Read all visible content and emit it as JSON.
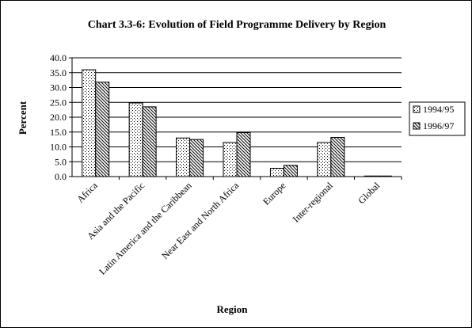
{
  "chart_data": {
    "type": "bar",
    "title": "Chart 3.3-6: Evolution of Field Programme Delivery by Region",
    "xlabel": "Region",
    "ylabel": "Percent",
    "ylim": [
      0,
      40
    ],
    "yticks": [
      "0.0",
      "5.0",
      "10.0",
      "15.0",
      "20.0",
      "25.0",
      "30.0",
      "35.0",
      "40.0"
    ],
    "categories": [
      "Africa",
      "Asia and the Pacific",
      "Latin America and the Caribbean",
      "Near East and North Africa",
      "Europe",
      "Inter-regional",
      "Global"
    ],
    "series": [
      {
        "name": "1994/95",
        "values": [
          36.0,
          24.8,
          13.0,
          11.5,
          2.8,
          11.5,
          0.2
        ]
      },
      {
        "name": "1996/97",
        "values": [
          31.8,
          23.5,
          12.5,
          14.8,
          3.8,
          13.2,
          0.2
        ]
      }
    ],
    "grid": true,
    "legend_position": "right"
  }
}
